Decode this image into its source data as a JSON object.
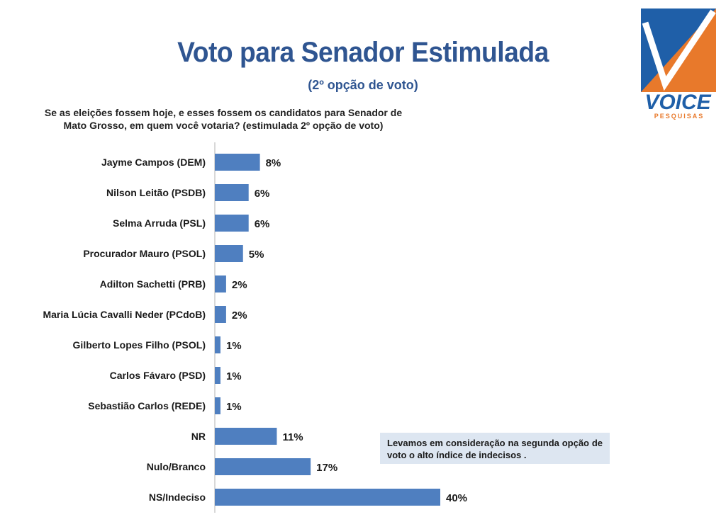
{
  "header": {
    "title": "Voto para Senador Estimulada",
    "subtitle": "(2º opção de voto)",
    "question": "Se as eleições fossem hoje, e esses fossem os candidatos para Senador de Mato Grosso, em quem você votaria? (estimulada 2º opção de voto)"
  },
  "logo": {
    "name": "VOICE",
    "tagline": "PESQUISAS",
    "colors": {
      "blue": "#1f5fa8",
      "orange": "#e8792b"
    }
  },
  "note": {
    "text": "Levamos em consideração na segunda opção de voto o alto índice de indecisos ."
  },
  "chart_data": {
    "type": "bar",
    "orientation": "horizontal",
    "categories": [
      "Jayme Campos (DEM)",
      "Nilson Leitão (PSDB)",
      "Selma Arruda (PSL)",
      "Procurador Mauro (PSOL)",
      "Adilton Sachetti (PRB)",
      "Maria Lúcia Cavalli Neder (PCdoB)",
      "Gilberto Lopes Filho (PSOL)",
      "Carlos Fávaro (PSD)",
      "Sebastião Carlos (REDE)",
      "NR",
      "Nulo/Branco",
      "NS/Indeciso"
    ],
    "values": [
      8,
      6,
      6,
      5,
      2,
      2,
      1,
      1,
      1,
      11,
      17,
      40
    ],
    "labels": [
      "8%",
      "6%",
      "6%",
      "5%",
      "2%",
      "2%",
      "1%",
      "1%",
      "1%",
      "11%",
      "17%",
      "40%"
    ],
    "bar_color": "#4f7fc0",
    "grid": false,
    "legend": "none",
    "xlim": [
      0,
      40
    ]
  }
}
